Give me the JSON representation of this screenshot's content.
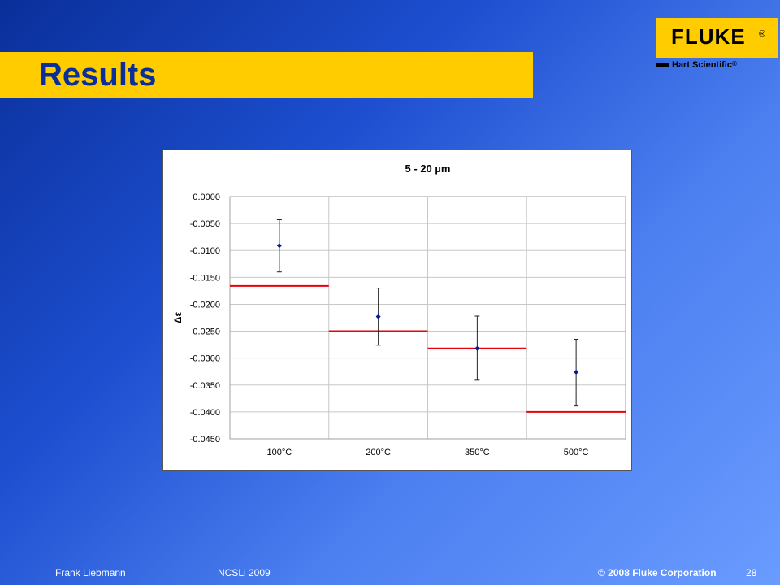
{
  "slide": {
    "title": "Results",
    "logo": {
      "brand": "FLUKE",
      "registered": "®",
      "sub": "Hart Scientific",
      "sub_registered": "®"
    },
    "footer": {
      "author": "Frank Liebmann",
      "event": "NCSLi 2009",
      "copyright": "© 2008 Fluke Corporation",
      "page": "28"
    }
  },
  "chart_data": {
    "type": "scatter",
    "title": "5 - 20 µm",
    "xlabel": "",
    "ylabel": "Δε",
    "categories": [
      "100°C",
      "200°C",
      "350°C",
      "500°C"
    ],
    "ylim": [
      -0.045,
      0.0
    ],
    "yticks": [
      "0.0000",
      "-0.0050",
      "-0.0100",
      "-0.0150",
      "-0.0200",
      "-0.0250",
      "-0.0300",
      "-0.0350",
      "-0.0400",
      "-0.0450"
    ],
    "grid": true,
    "series": [
      {
        "kind": "points_with_error",
        "color": "#0a1a8a",
        "values": [
          -0.0091,
          -0.0223,
          -0.0282,
          -0.0326
        ],
        "err_low": [
          -0.014,
          -0.0276,
          -0.0341,
          -0.0389
        ],
        "err_high": [
          -0.0043,
          -0.017,
          -0.0222,
          -0.0265
        ]
      },
      {
        "kind": "reference_steps",
        "color": "#e8000b",
        "values": [
          -0.0166,
          -0.025,
          -0.0282,
          -0.04
        ]
      }
    ]
  }
}
